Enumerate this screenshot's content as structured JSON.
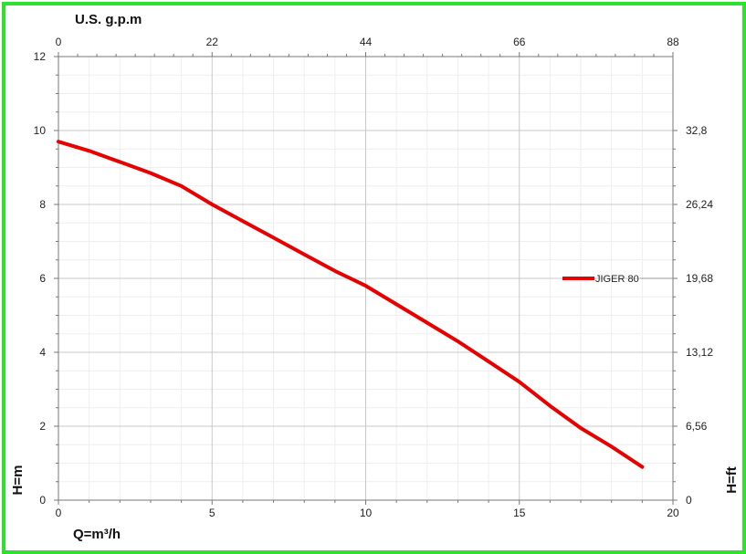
{
  "chart_data": {
    "type": "line",
    "title": "",
    "x_label_bottom": "Q=m³/h",
    "x_label_top": "U.S. g.p.m",
    "y_label_left": "H=m",
    "y_label_right": "H=ft",
    "xlim": [
      0,
      20
    ],
    "ylim": [
      0,
      12
    ],
    "x_ticks_bottom": [
      "0",
      "5",
      "10",
      "15",
      "20"
    ],
    "x_ticks_top": [
      "0",
      "22",
      "44",
      "66",
      "88"
    ],
    "y_ticks_left": [
      "0",
      "2",
      "4",
      "6",
      "8",
      "10",
      "12"
    ],
    "y_ticks_right": [
      "0",
      "6,56",
      "13,12",
      "19,68",
      "26,24",
      "32,8"
    ],
    "grid": true,
    "legend_position": "right",
    "series": [
      {
        "name": "JIGER 80",
        "color": "#e60000",
        "x": [
          0,
          1,
          2,
          3,
          4,
          5,
          6,
          7,
          8,
          9,
          10,
          11,
          12,
          13,
          14,
          15,
          16,
          17,
          18,
          19
        ],
        "y": [
          9.7,
          9.45,
          9.15,
          8.85,
          8.5,
          8.0,
          7.55,
          7.1,
          6.65,
          6.2,
          5.8,
          5.3,
          4.8,
          4.3,
          3.75,
          3.2,
          2.55,
          1.95,
          1.45,
          0.9
        ]
      }
    ]
  }
}
